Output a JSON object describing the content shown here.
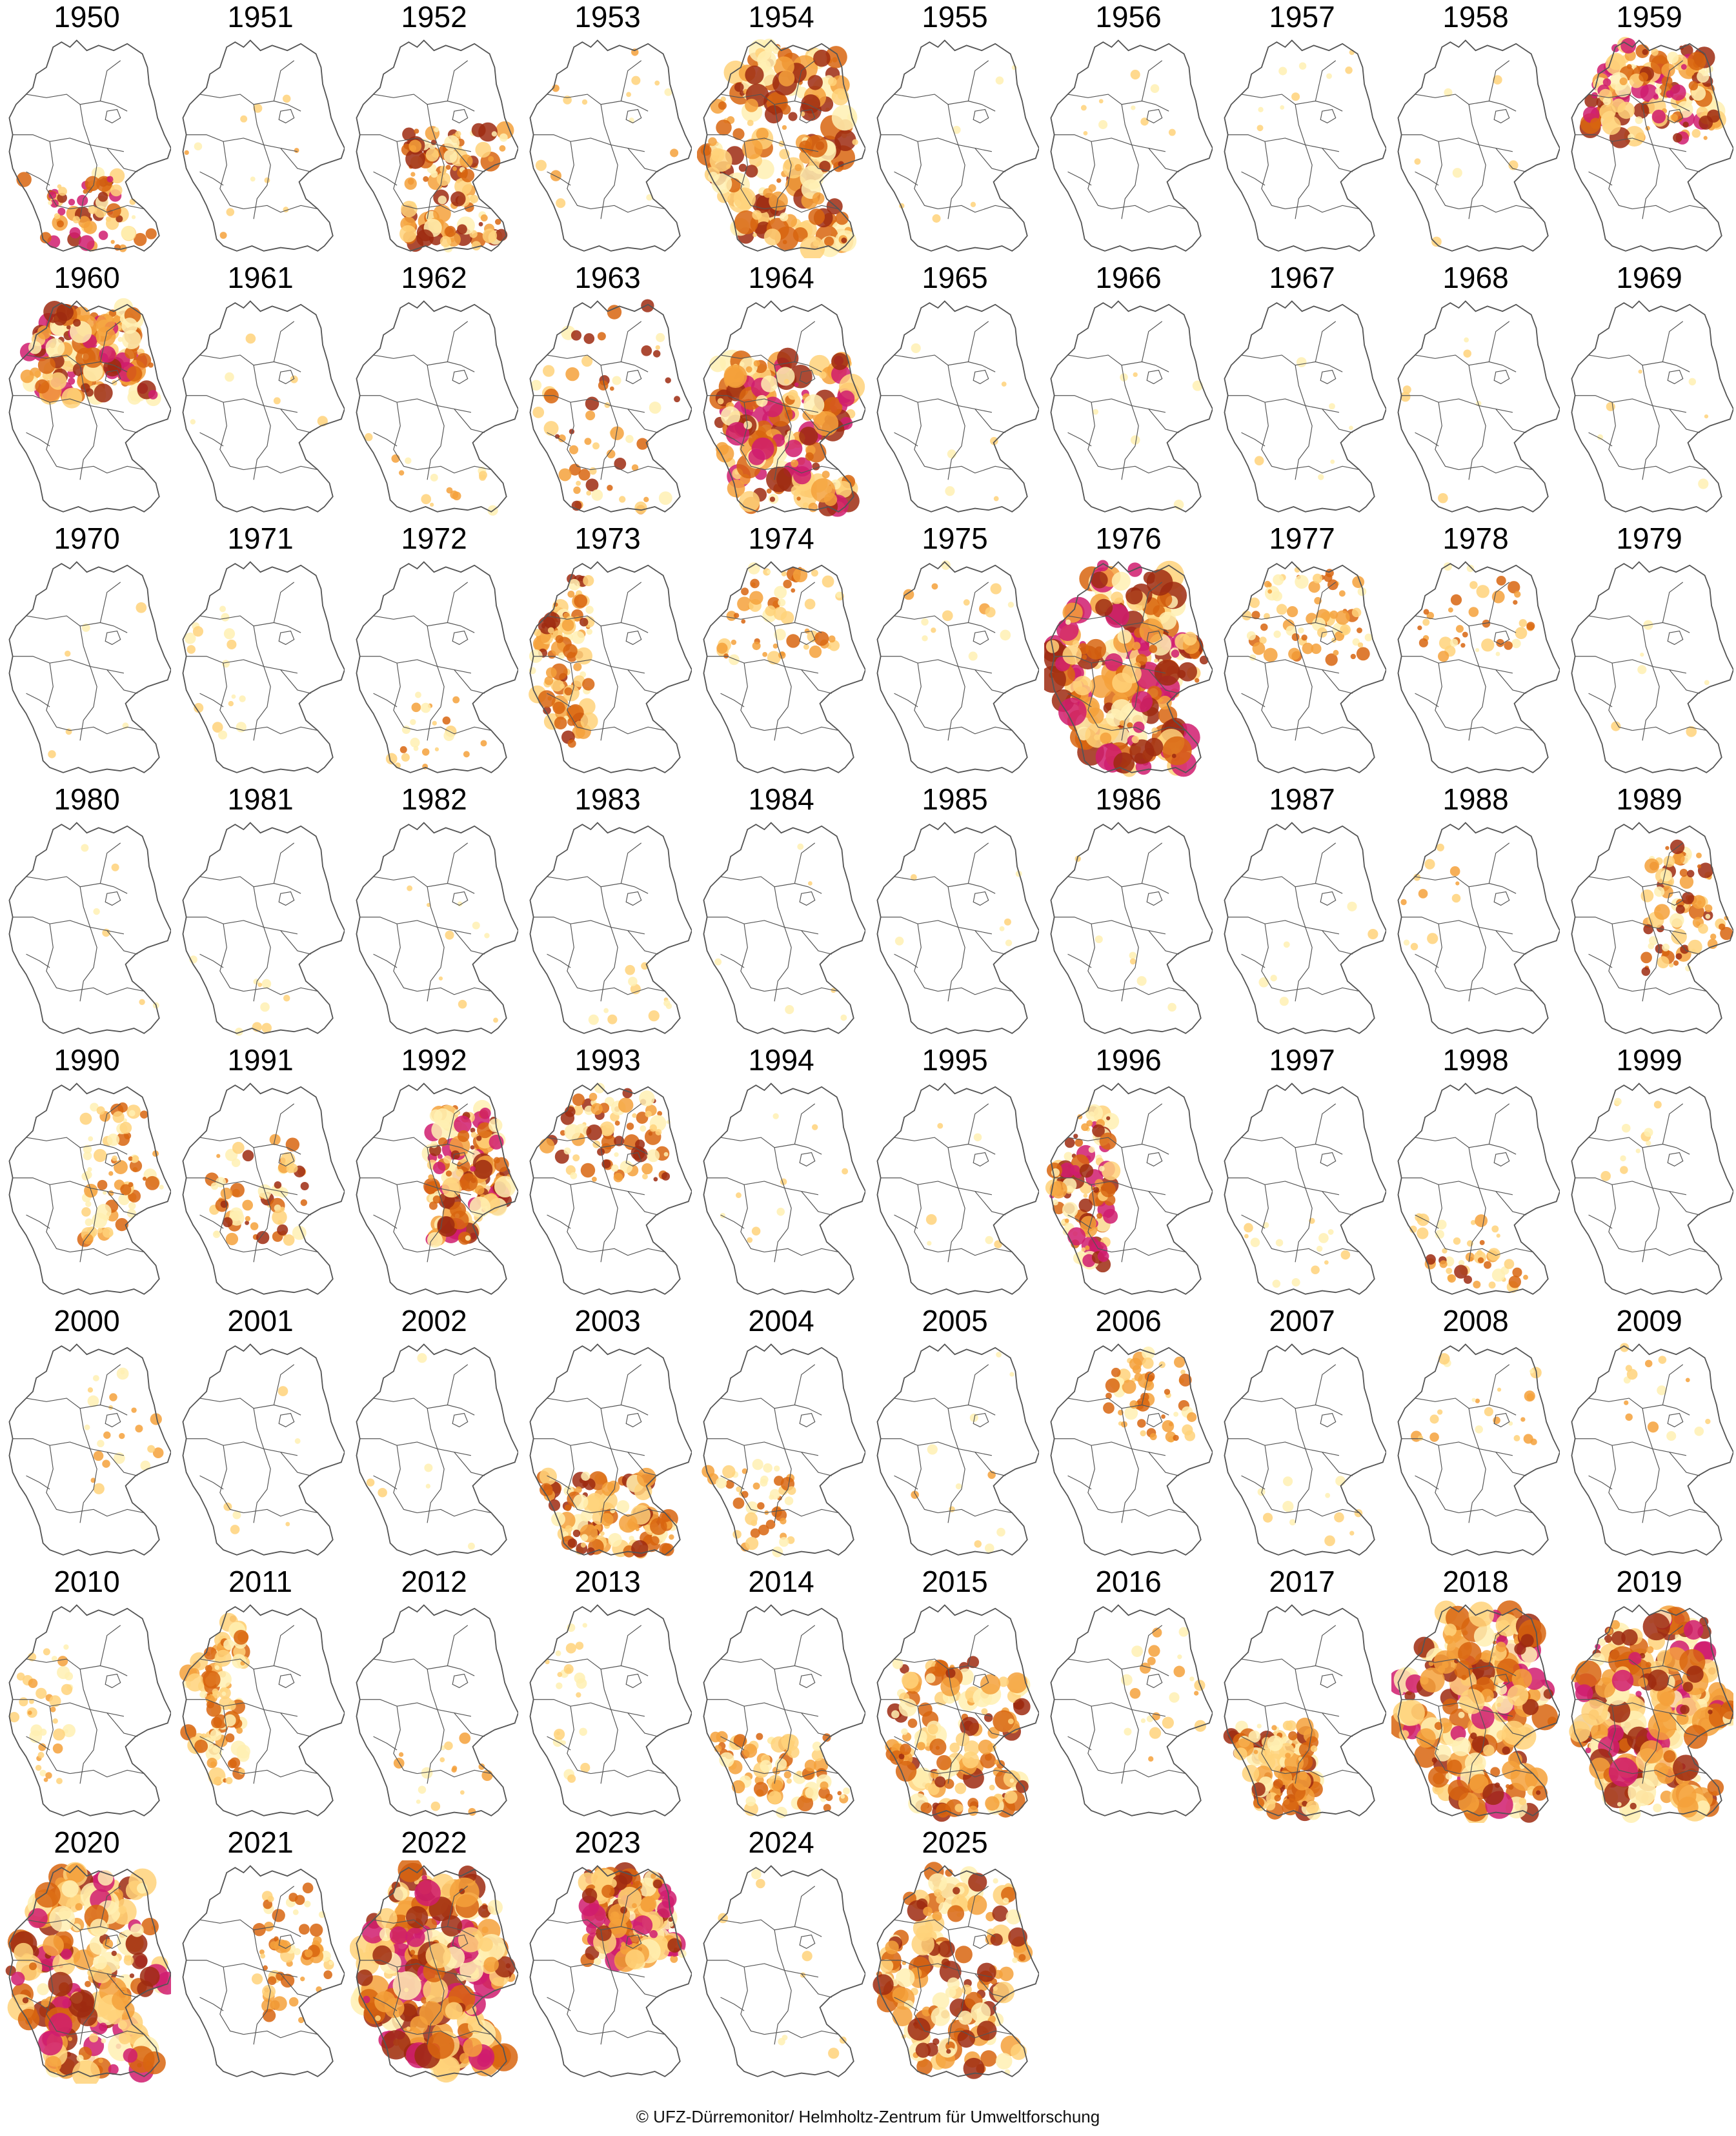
{
  "colors": {
    "outline": "#555555",
    "background": "#ffffff",
    "drought_levels": [
      "#fff0b3",
      "#ffd27a",
      "#f5a13b",
      "#d8650f",
      "#9e2a10",
      "#d01c6e"
    ]
  },
  "maps": [
    {
      "year": "1950",
      "intensity": 0.25,
      "severity": 5,
      "region": "south"
    },
    {
      "year": "1951",
      "intensity": 0.02,
      "severity": 2,
      "region": "all"
    },
    {
      "year": "1952",
      "intensity": 0.45,
      "severity": 4,
      "region": "south-east"
    },
    {
      "year": "1953",
      "intensity": 0.03,
      "severity": 2,
      "region": "all"
    },
    {
      "year": "1954",
      "intensity": 0.75,
      "severity": 4,
      "region": "all"
    },
    {
      "year": "1955",
      "intensity": 0.0,
      "severity": 1,
      "region": "all"
    },
    {
      "year": "1956",
      "intensity": 0.01,
      "severity": 1,
      "region": "north"
    },
    {
      "year": "1957",
      "intensity": 0.01,
      "severity": 1,
      "region": "north"
    },
    {
      "year": "1958",
      "intensity": 0.0,
      "severity": 1,
      "region": "all"
    },
    {
      "year": "1959",
      "intensity": 0.55,
      "severity": 5,
      "region": "north"
    },
    {
      "year": "1960",
      "intensity": 0.6,
      "severity": 5,
      "region": "north"
    },
    {
      "year": "1961",
      "intensity": 0.0,
      "severity": 1,
      "region": "all"
    },
    {
      "year": "1962",
      "intensity": 0.03,
      "severity": 2,
      "region": "south"
    },
    {
      "year": "1963",
      "intensity": 0.2,
      "severity": 4,
      "region": "all"
    },
    {
      "year": "1964",
      "intensity": 0.75,
      "severity": 5,
      "region": "center-south"
    },
    {
      "year": "1965",
      "intensity": 0.0,
      "severity": 1,
      "region": "all"
    },
    {
      "year": "1966",
      "intensity": 0.0,
      "severity": 1,
      "region": "all"
    },
    {
      "year": "1967",
      "intensity": 0.0,
      "severity": 1,
      "region": "all"
    },
    {
      "year": "1968",
      "intensity": 0.0,
      "severity": 1,
      "region": "all"
    },
    {
      "year": "1969",
      "intensity": 0.0,
      "severity": 1,
      "region": "all"
    },
    {
      "year": "1970",
      "intensity": 0.0,
      "severity": 1,
      "region": "all"
    },
    {
      "year": "1971",
      "intensity": 0.04,
      "severity": 1,
      "region": "west"
    },
    {
      "year": "1972",
      "intensity": 0.06,
      "severity": 3,
      "region": "south"
    },
    {
      "year": "1973",
      "intensity": 0.35,
      "severity": 4,
      "region": "west"
    },
    {
      "year": "1974",
      "intensity": 0.2,
      "severity": 3,
      "region": "north"
    },
    {
      "year": "1975",
      "intensity": 0.03,
      "severity": 2,
      "region": "north"
    },
    {
      "year": "1976",
      "intensity": 0.92,
      "severity": 5,
      "region": "all"
    },
    {
      "year": "1977",
      "intensity": 0.25,
      "severity": 3,
      "region": "north"
    },
    {
      "year": "1978",
      "intensity": 0.12,
      "severity": 3,
      "region": "north"
    },
    {
      "year": "1979",
      "intensity": 0.0,
      "severity": 1,
      "region": "all"
    },
    {
      "year": "1980",
      "intensity": 0.0,
      "severity": 1,
      "region": "all"
    },
    {
      "year": "1981",
      "intensity": 0.01,
      "severity": 1,
      "region": "south"
    },
    {
      "year": "1982",
      "intensity": 0.01,
      "severity": 1,
      "region": "all"
    },
    {
      "year": "1983",
      "intensity": 0.02,
      "severity": 1,
      "region": "south"
    },
    {
      "year": "1984",
      "intensity": 0.0,
      "severity": 1,
      "region": "all"
    },
    {
      "year": "1985",
      "intensity": 0.0,
      "severity": 1,
      "region": "all"
    },
    {
      "year": "1986",
      "intensity": 0.0,
      "severity": 1,
      "region": "all"
    },
    {
      "year": "1987",
      "intensity": 0.0,
      "severity": 1,
      "region": "all"
    },
    {
      "year": "1988",
      "intensity": 0.02,
      "severity": 2,
      "region": "west"
    },
    {
      "year": "1989",
      "intensity": 0.3,
      "severity": 4,
      "region": "east"
    },
    {
      "year": "1990",
      "intensity": 0.25,
      "severity": 3,
      "region": "east"
    },
    {
      "year": "1991",
      "intensity": 0.22,
      "severity": 4,
      "region": "center"
    },
    {
      "year": "1992",
      "intensity": 0.55,
      "severity": 5,
      "region": "east"
    },
    {
      "year": "1993",
      "intensity": 0.3,
      "severity": 4,
      "region": "north"
    },
    {
      "year": "1994",
      "intensity": 0.01,
      "severity": 1,
      "region": "all"
    },
    {
      "year": "1995",
      "intensity": 0.0,
      "severity": 1,
      "region": "all"
    },
    {
      "year": "1996",
      "intensity": 0.4,
      "severity": 5,
      "region": "west"
    },
    {
      "year": "1997",
      "intensity": 0.03,
      "severity": 1,
      "region": "south"
    },
    {
      "year": "1998",
      "intensity": 0.15,
      "severity": 4,
      "region": "south"
    },
    {
      "year": "1999",
      "intensity": 0.02,
      "severity": 1,
      "region": "north"
    },
    {
      "year": "2000",
      "intensity": 0.06,
      "severity": 2,
      "region": "east"
    },
    {
      "year": "2001",
      "intensity": 0.0,
      "severity": 1,
      "region": "all"
    },
    {
      "year": "2002",
      "intensity": 0.0,
      "severity": 1,
      "region": "all"
    },
    {
      "year": "2003",
      "intensity": 0.45,
      "severity": 4,
      "region": "south"
    },
    {
      "year": "2004",
      "intensity": 0.15,
      "severity": 3,
      "region": "south-west"
    },
    {
      "year": "2005",
      "intensity": 0.02,
      "severity": 2,
      "region": "all"
    },
    {
      "year": "2006",
      "intensity": 0.2,
      "severity": 3,
      "region": "north-east"
    },
    {
      "year": "2007",
      "intensity": 0.02,
      "severity": 1,
      "region": "south"
    },
    {
      "year": "2008",
      "intensity": 0.06,
      "severity": 2,
      "region": "north"
    },
    {
      "year": "2009",
      "intensity": 0.03,
      "severity": 2,
      "region": "north"
    },
    {
      "year": "2010",
      "intensity": 0.12,
      "severity": 2,
      "region": "west"
    },
    {
      "year": "2011",
      "intensity": 0.4,
      "severity": 3,
      "region": "west"
    },
    {
      "year": "2012",
      "intensity": 0.04,
      "severity": 2,
      "region": "south"
    },
    {
      "year": "2013",
      "intensity": 0.06,
      "severity": 1,
      "region": "west"
    },
    {
      "year": "2014",
      "intensity": 0.3,
      "severity": 3,
      "region": "south"
    },
    {
      "year": "2015",
      "intensity": 0.55,
      "severity": 4,
      "region": "center-south"
    },
    {
      "year": "2016",
      "intensity": 0.06,
      "severity": 2,
      "region": "east"
    },
    {
      "year": "2017",
      "intensity": 0.45,
      "severity": 4,
      "region": "south-west"
    },
    {
      "year": "2018",
      "intensity": 0.85,
      "severity": 5,
      "region": "all"
    },
    {
      "year": "2019",
      "intensity": 0.92,
      "severity": 5,
      "region": "all"
    },
    {
      "year": "2020",
      "intensity": 0.85,
      "severity": 5,
      "region": "all"
    },
    {
      "year": "2021",
      "intensity": 0.2,
      "severity": 3,
      "region": "east"
    },
    {
      "year": "2022",
      "intensity": 0.95,
      "severity": 5,
      "region": "all"
    },
    {
      "year": "2023",
      "intensity": 0.7,
      "severity": 5,
      "region": "north-east"
    },
    {
      "year": "2024",
      "intensity": 0.01,
      "severity": 1,
      "region": "all"
    },
    {
      "year": "2025",
      "intensity": 0.65,
      "severity": 4,
      "region": "all"
    }
  ],
  "credit": "© UFZ-Dürremonitor/ Helmholtz-Zentrum für Umweltforschung"
}
